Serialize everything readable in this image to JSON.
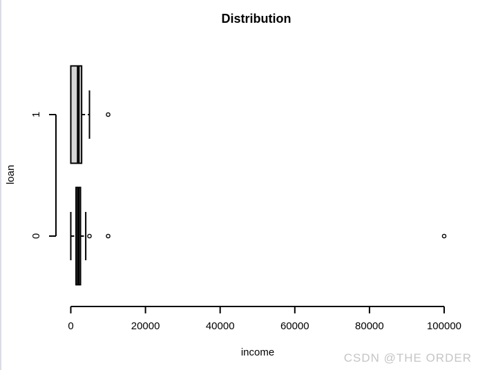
{
  "chart_data": {
    "type": "boxplot",
    "orientation": "horizontal",
    "title": "Distribution",
    "xlabel": "income",
    "ylabel": "loan",
    "xlim": [
      0,
      100000
    ],
    "x_ticks": [
      0,
      20000,
      40000,
      60000,
      80000,
      100000
    ],
    "y_tick_labels": [
      "0",
      "1"
    ],
    "grid": false,
    "box_fill": "#d6d6d6",
    "line_color": "#000000",
    "groups": [
      {
        "label": "0",
        "position": 1,
        "whisker_low": 0,
        "q1": 1400,
        "median": 2000,
        "q3": 2600,
        "whisker_high": 4000,
        "outliers": [
          5000,
          10000,
          100000
        ]
      },
      {
        "label": "1",
        "position": 2,
        "whisker_low": 0,
        "q1": 0,
        "median": 2000,
        "q3": 2900,
        "whisker_high": 5000,
        "outliers": [
          10000
        ]
      }
    ]
  },
  "watermark": {
    "text": "CSDN @THE ORDER",
    "color": "#c5c5c5"
  }
}
